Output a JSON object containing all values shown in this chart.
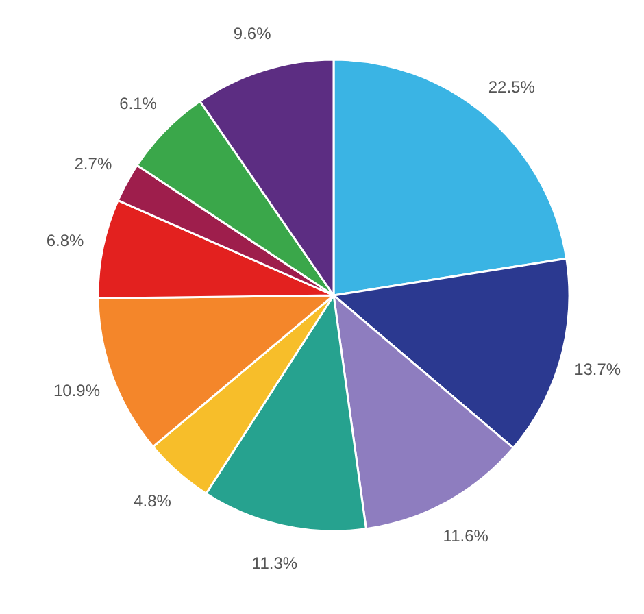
{
  "chart_data": {
    "type": "pie",
    "categories": [
      null,
      null,
      null,
      null,
      null,
      null,
      null,
      null,
      null,
      null
    ],
    "values": [
      22.5,
      13.7,
      11.6,
      11.3,
      4.8,
      10.9,
      6.8,
      2.7,
      6.1,
      9.6
    ],
    "colors": [
      "#3ab4e4",
      "#2b3990",
      "#8e7dbf",
      "#26a28f",
      "#f7be2a",
      "#f4862a",
      "#e3211f",
      "#9e1e4c",
      "#3aa74a",
      "#5c2d82"
    ],
    "value_labels": [
      "22.5%",
      "13.7%",
      "11.6%",
      "11.3%",
      "4.8%",
      "10.9%",
      "6.8%",
      "2.7%",
      "6.1%",
      "9.6%"
    ]
  }
}
